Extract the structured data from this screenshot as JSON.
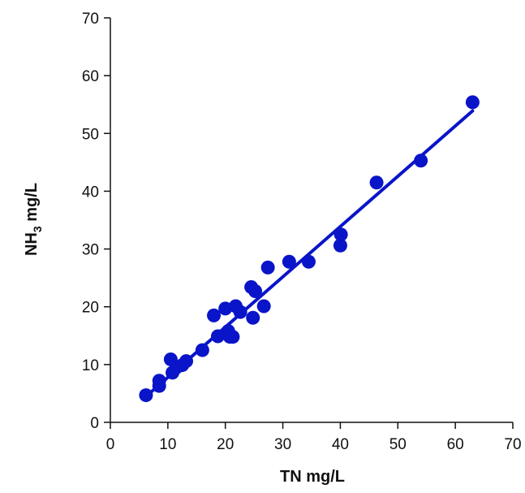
{
  "chart_data": {
    "type": "scatter",
    "xlabel": "TN mg/L",
    "ylabel": {
      "main": "NH",
      "sub": "3",
      "rest": " mg/L"
    },
    "xlim": [
      0,
      70
    ],
    "ylim": [
      0,
      70
    ],
    "xticks": [
      "0",
      "10",
      "20",
      "30",
      "40",
      "50",
      "60",
      "70"
    ],
    "yticks": [
      "0",
      "10",
      "20",
      "30",
      "40",
      "50",
      "60",
      "70"
    ],
    "grid": false,
    "points": [
      {
        "x": 6.2,
        "y": 4.7
      },
      {
        "x": 8.5,
        "y": 6.3
      },
      {
        "x": 8.5,
        "y": 7.2
      },
      {
        "x": 10.5,
        "y": 10.9
      },
      {
        "x": 10.8,
        "y": 8.6
      },
      {
        "x": 11.5,
        "y": 9.5
      },
      {
        "x": 12.5,
        "y": 9.9
      },
      {
        "x": 13.2,
        "y": 10.6
      },
      {
        "x": 16.0,
        "y": 12.5
      },
      {
        "x": 18.0,
        "y": 18.5
      },
      {
        "x": 18.7,
        "y": 14.9
      },
      {
        "x": 20.0,
        "y": 19.7
      },
      {
        "x": 20.5,
        "y": 15.8
      },
      {
        "x": 20.8,
        "y": 14.8
      },
      {
        "x": 21.3,
        "y": 14.8
      },
      {
        "x": 21.8,
        "y": 20.1
      },
      {
        "x": 22.6,
        "y": 19.1
      },
      {
        "x": 24.5,
        "y": 23.4
      },
      {
        "x": 24.8,
        "y": 18.1
      },
      {
        "x": 25.2,
        "y": 22.7
      },
      {
        "x": 26.7,
        "y": 20.1
      },
      {
        "x": 27.4,
        "y": 26.8
      },
      {
        "x": 31.1,
        "y": 27.8
      },
      {
        "x": 34.5,
        "y": 27.8
      },
      {
        "x": 40.0,
        "y": 30.6
      },
      {
        "x": 40.1,
        "y": 32.5
      },
      {
        "x": 46.3,
        "y": 41.5
      },
      {
        "x": 54.0,
        "y": 45.3
      },
      {
        "x": 63.0,
        "y": 55.4
      }
    ],
    "fit_line": {
      "x": [
        6.0,
        63.0
      ],
      "y": [
        4.3,
        53.9
      ]
    },
    "colors": {
      "points": "#0a14c8",
      "fit_line": "#0a14c8",
      "axes": "#111111"
    }
  }
}
